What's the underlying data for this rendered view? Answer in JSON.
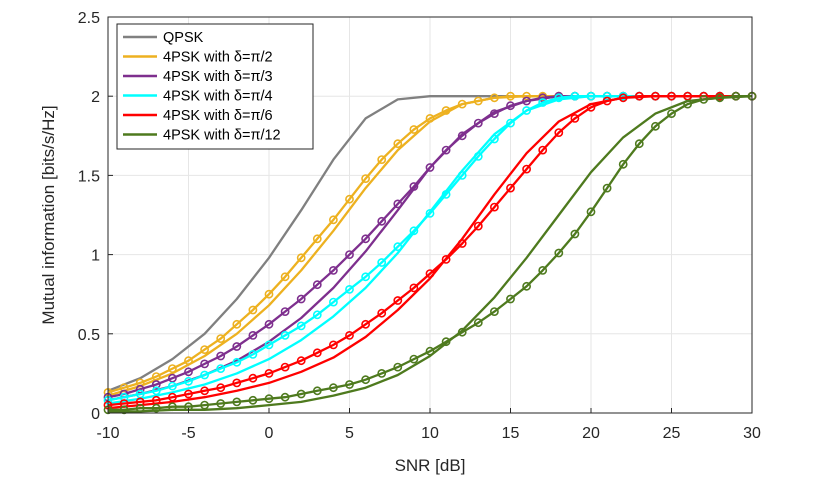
{
  "chart_data": {
    "type": "line",
    "title": "",
    "xlabel": "SNR [dB]",
    "ylabel": "Mutual information [bits/s/Hz]",
    "xlim": [
      -10,
      30
    ],
    "ylim": [
      0,
      2.5
    ],
    "xticks": [
      "-10",
      "-5",
      "0",
      "5",
      "10",
      "15",
      "20",
      "25",
      "30"
    ],
    "yticks": [
      "0",
      "0.5",
      "1",
      "1.5",
      "2",
      "2.5"
    ],
    "grid": true,
    "legend_position": "top-left",
    "series": [
      {
        "name": "QPSK",
        "color": "#808080",
        "markers": false,
        "lines": [
          {
            "x": [
              -10,
              -8,
              -6,
              -4,
              -2,
              0,
              2,
              4,
              6,
              8,
              10,
              12,
              14,
              16,
              18,
              20,
              22,
              24,
              26,
              28,
              30
            ],
            "y": [
              0.14,
              0.22,
              0.34,
              0.5,
              0.72,
              0.98,
              1.28,
              1.6,
              1.86,
              1.98,
              2.0,
              2.0,
              2.0,
              2.0,
              2.0,
              2.0,
              2.0,
              2.0,
              2.0,
              2.0,
              2.0
            ]
          }
        ]
      },
      {
        "name": "4PSK with δ=π/2",
        "color": "#EDB120",
        "markers": true,
        "lines": [
          {
            "x": [
              -10,
              -9,
              -8,
              -7,
              -6,
              -5,
              -4,
              -3,
              -2,
              -1,
              0,
              1,
              2,
              3,
              4,
              5,
              6,
              7,
              8,
              9,
              10,
              11,
              12,
              13,
              14,
              15,
              16,
              17,
              18,
              19,
              20,
              21,
              22,
              23,
              24,
              25,
              26,
              27,
              28,
              29,
              30
            ],
            "y": [
              0.13,
              0.16,
              0.19,
              0.23,
              0.28,
              0.33,
              0.4,
              0.47,
              0.56,
              0.65,
              0.75,
              0.86,
              0.98,
              1.1,
              1.22,
              1.35,
              1.48,
              1.6,
              1.7,
              1.79,
              1.86,
              1.91,
              1.95,
              1.97,
              1.99,
              2.0,
              2.0,
              2.0,
              2.0,
              2.0,
              2.0,
              2.0,
              2.0,
              2.0,
              2.0,
              2.0,
              2.0,
              2.0,
              2.0,
              2.0,
              2.0
            ]
          },
          {
            "x": [
              -10,
              -8,
              -6,
              -4,
              -2,
              0,
              2,
              4,
              6,
              8,
              10,
              12,
              14,
              16,
              18,
              20,
              22,
              24,
              26,
              28,
              30
            ],
            "y": [
              0.11,
              0.17,
              0.25,
              0.36,
              0.5,
              0.68,
              0.9,
              1.15,
              1.42,
              1.66,
              1.84,
              1.95,
              1.99,
              2.0,
              2.0,
              2.0,
              2.0,
              2.0,
              2.0,
              2.0,
              2.0
            ]
          }
        ]
      },
      {
        "name": "4PSK with δ=π/3",
        "color": "#7E2F8E",
        "markers": true,
        "lines": [
          {
            "x": [
              -10,
              -9,
              -8,
              -7,
              -6,
              -5,
              -4,
              -3,
              -2,
              -1,
              0,
              1,
              2,
              3,
              4,
              5,
              6,
              7,
              8,
              9,
              10,
              11,
              12,
              13,
              14,
              15,
              16,
              17,
              18,
              19,
              20,
              21,
              22,
              23,
              24,
              25,
              26,
              27,
              28,
              29,
              30
            ],
            "y": [
              0.1,
              0.12,
              0.15,
              0.18,
              0.22,
              0.26,
              0.31,
              0.36,
              0.42,
              0.49,
              0.56,
              0.64,
              0.72,
              0.81,
              0.9,
              1.0,
              1.1,
              1.21,
              1.32,
              1.43,
              1.55,
              1.66,
              1.75,
              1.83,
              1.89,
              1.94,
              1.97,
              1.99,
              2.0,
              2.0,
              2.0,
              2.0,
              2.0,
              2.0,
              2.0,
              2.0,
              2.0,
              2.0,
              2.0,
              2.0,
              2.0
            ]
          },
          {
            "x": [
              -10,
              -8,
              -6,
              -4,
              -2,
              0,
              2,
              4,
              6,
              8,
              10,
              12,
              14,
              16,
              18,
              20,
              22,
              24,
              26,
              28,
              30
            ],
            "y": [
              0.08,
              0.12,
              0.17,
              0.24,
              0.33,
              0.45,
              0.6,
              0.79,
              1.02,
              1.28,
              1.55,
              1.76,
              1.9,
              1.97,
              2.0,
              2.0,
              2.0,
              2.0,
              2.0,
              2.0,
              2.0
            ]
          }
        ]
      },
      {
        "name": "4PSK with δ=π/4",
        "color": "#00FFFF",
        "markers": true,
        "lines": [
          {
            "x": [
              -10,
              -9,
              -8,
              -7,
              -6,
              -5,
              -4,
              -3,
              -2,
              -1,
              0,
              1,
              2,
              3,
              4,
              5,
              6,
              7,
              8,
              9,
              10,
              11,
              12,
              13,
              14,
              15,
              16,
              17,
              18,
              19,
              20,
              21,
              22,
              23,
              24,
              25,
              26,
              27,
              28,
              29,
              30
            ],
            "y": [
              0.08,
              0.1,
              0.12,
              0.14,
              0.17,
              0.2,
              0.24,
              0.28,
              0.32,
              0.37,
              0.43,
              0.49,
              0.55,
              0.62,
              0.7,
              0.78,
              0.86,
              0.95,
              1.05,
              1.15,
              1.26,
              1.38,
              1.5,
              1.62,
              1.73,
              1.83,
              1.91,
              1.96,
              1.99,
              2.0,
              2.0,
              2.0,
              2.0,
              2.0,
              2.0,
              2.0,
              2.0,
              2.0,
              2.0,
              2.0,
              2.0
            ]
          },
          {
            "x": [
              -10,
              -8,
              -6,
              -4,
              -2,
              0,
              2,
              4,
              6,
              8,
              10,
              12,
              14,
              16,
              18,
              20,
              22,
              24,
              26,
              28,
              30
            ],
            "y": [
              0.06,
              0.09,
              0.13,
              0.18,
              0.25,
              0.34,
              0.46,
              0.61,
              0.79,
              1.01,
              1.27,
              1.53,
              1.76,
              1.91,
              1.98,
              2.0,
              2.0,
              2.0,
              2.0,
              2.0,
              2.0
            ]
          }
        ]
      },
      {
        "name": "4PSK with δ=π/6",
        "color": "#FF0000",
        "markers": true,
        "lines": [
          {
            "x": [
              -10,
              -9,
              -8,
              -7,
              -6,
              -5,
              -4,
              -3,
              -2,
              -1,
              0,
              1,
              2,
              3,
              4,
              5,
              6,
              7,
              8,
              9,
              10,
              11,
              12,
              13,
              14,
              15,
              16,
              17,
              18,
              19,
              20,
              21,
              22,
              23,
              24,
              25,
              26,
              27,
              28,
              29,
              30
            ],
            "y": [
              0.05,
              0.06,
              0.07,
              0.08,
              0.1,
              0.12,
              0.14,
              0.16,
              0.19,
              0.22,
              0.25,
              0.29,
              0.33,
              0.38,
              0.43,
              0.49,
              0.56,
              0.63,
              0.71,
              0.79,
              0.88,
              0.97,
              1.07,
              1.18,
              1.3,
              1.42,
              1.54,
              1.66,
              1.77,
              1.86,
              1.93,
              1.97,
              1.99,
              2.0,
              2.0,
              2.0,
              2.0,
              2.0,
              2.0,
              2.0,
              2.0
            ]
          },
          {
            "x": [
              -10,
              -8,
              -6,
              -4,
              -2,
              0,
              2,
              4,
              6,
              8,
              10,
              12,
              14,
              16,
              18,
              20,
              22,
              24,
              26,
              28,
              30
            ],
            "y": [
              0.03,
              0.05,
              0.07,
              0.1,
              0.14,
              0.19,
              0.26,
              0.35,
              0.48,
              0.65,
              0.85,
              1.1,
              1.38,
              1.64,
              1.84,
              1.95,
              1.99,
              2.0,
              2.0,
              2.0,
              2.0
            ]
          }
        ]
      },
      {
        "name": "4PSK with δ=π/12",
        "color": "#4E7A1E",
        "markers": true,
        "lines": [
          {
            "x": [
              -10,
              -9,
              -8,
              -7,
              -6,
              -5,
              -4,
              -3,
              -2,
              -1,
              0,
              1,
              2,
              3,
              4,
              5,
              6,
              7,
              8,
              9,
              10,
              11,
              12,
              13,
              14,
              15,
              16,
              17,
              18,
              19,
              20,
              21,
              22,
              23,
              24,
              25,
              26,
              27,
              28,
              29,
              30
            ],
            "y": [
              0.02,
              0.02,
              0.03,
              0.03,
              0.04,
              0.04,
              0.05,
              0.06,
              0.07,
              0.08,
              0.09,
              0.1,
              0.12,
              0.14,
              0.16,
              0.18,
              0.21,
              0.25,
              0.29,
              0.34,
              0.39,
              0.45,
              0.51,
              0.57,
              0.64,
              0.72,
              0.8,
              0.9,
              1.01,
              1.13,
              1.27,
              1.42,
              1.57,
              1.7,
              1.81,
              1.89,
              1.95,
              1.98,
              1.99,
              2.0,
              2.0
            ]
          },
          {
            "x": [
              -10,
              -8,
              -6,
              -4,
              -2,
              0,
              2,
              4,
              6,
              8,
              10,
              12,
              14,
              16,
              18,
              20,
              22,
              24,
              26,
              28,
              30
            ],
            "y": [
              0.01,
              0.01,
              0.02,
              0.02,
              0.03,
              0.05,
              0.07,
              0.11,
              0.16,
              0.24,
              0.36,
              0.52,
              0.73,
              0.98,
              1.25,
              1.52,
              1.74,
              1.89,
              1.97,
              1.99,
              2.0
            ]
          }
        ]
      }
    ]
  }
}
